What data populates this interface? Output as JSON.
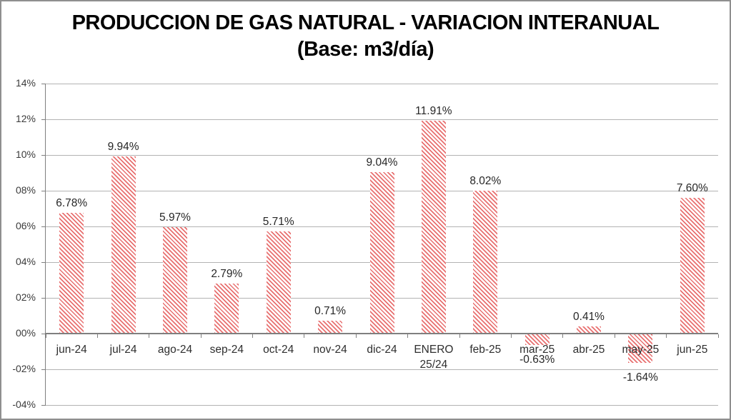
{
  "window": {
    "background": "#ffffff",
    "border_color": "#8f8f8f"
  },
  "chart_data": {
    "type": "bar",
    "title": "PRODUCCION DE GAS NATURAL - VARIACION INTERANUAL",
    "subtitle": "(Base: m3/día)",
    "categories": [
      "jun-24",
      "jul-24",
      "ago-24",
      "sep-24",
      "oct-24",
      "nov-24",
      "dic-24",
      "ENERO\n25/24",
      "feb-25",
      "mar-25",
      "abr-25",
      "may-25",
      "jun-25"
    ],
    "values": [
      6.78,
      9.94,
      5.97,
      2.79,
      5.71,
      0.71,
      9.04,
      11.91,
      8.02,
      -0.63,
      0.41,
      -1.64,
      7.6
    ],
    "data_labels": [
      "6.78%",
      "9.94%",
      "5.97%",
      "2.79%",
      "5.71%",
      "0.71%",
      "9.04%",
      "11.91%",
      "8.02%",
      "-0.63%",
      "0.41%",
      "-1.64%",
      "7.60%"
    ],
    "y_ticks": [
      {
        "value": 14,
        "label": "14%"
      },
      {
        "value": 12,
        "label": "12%"
      },
      {
        "value": 10,
        "label": "10%"
      },
      {
        "value": 8,
        "label": "08%"
      },
      {
        "value": 6,
        "label": "06%"
      },
      {
        "value": 4,
        "label": "04%"
      },
      {
        "value": 2,
        "label": "02%"
      },
      {
        "value": 0,
        "label": "00%"
      },
      {
        "value": -2,
        "label": "-02%"
      },
      {
        "value": -4,
        "label": "-04%"
      }
    ],
    "ylim": [
      -4,
      14
    ],
    "xlabel": "",
    "ylabel": "",
    "grid": true,
    "legend": false,
    "bar_pattern": "diagonal-hatch-down",
    "bar_stripe_color": "#e87070",
    "bar_background_color": "#ffffff",
    "gridline_color": "#b3b3b3",
    "axis_color": "#7f7f7f",
    "label_color": "#262626"
  }
}
